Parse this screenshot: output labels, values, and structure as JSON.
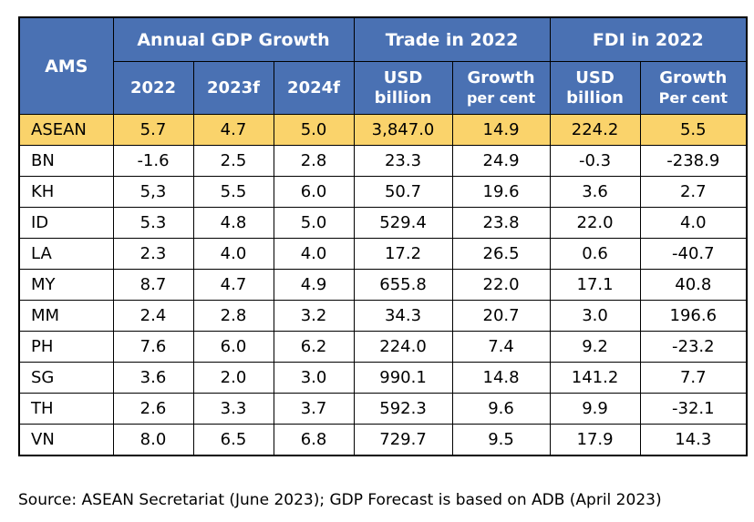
{
  "table": {
    "header": {
      "ams": "AMS",
      "groups": {
        "gdp": "Annual GDP Growth",
        "trade": "Trade in 2022",
        "fdi": "FDI in 2022"
      },
      "subs": {
        "gdp_2022": "2022",
        "gdp_2023f": "2023f",
        "gdp_2024f": "2024f",
        "trade_usd_line1": "USD",
        "trade_usd_line2": "billion",
        "trade_growth_line1": "Growth",
        "trade_growth_line2": "per cent",
        "fdi_usd_line1": "USD",
        "fdi_usd_line2": "billion",
        "fdi_growth_line1": "Growth",
        "fdi_growth_line2": "Per cent"
      }
    },
    "rows": [
      [
        "ASEAN",
        "5.7",
        "4.7",
        "5.0",
        "3,847.0",
        "14.9",
        "224.2",
        "5.5"
      ],
      [
        "BN",
        "-1.6",
        "2.5",
        "2.8",
        "23.3",
        "24.9",
        "-0.3",
        "-238.9"
      ],
      [
        "KH",
        "5,3",
        "5.5",
        "6.0",
        "50.7",
        "19.6",
        "3.6",
        "2.7"
      ],
      [
        "ID",
        "5.3",
        "4.8",
        "5.0",
        "529.4",
        "23.8",
        "22.0",
        "4.0"
      ],
      [
        "LA",
        "2.3",
        "4.0",
        "4.0",
        "17.2",
        "26.5",
        "0.6",
        "-40.7"
      ],
      [
        "MY",
        "8.7",
        "4.7",
        "4.9",
        "655.8",
        "22.0",
        "17.1",
        "40.8"
      ],
      [
        "MM",
        "2.4",
        "2.8",
        "3.2",
        "34.3",
        "20.7",
        "3.0",
        "196.6"
      ],
      [
        "PH",
        "7.6",
        "6.0",
        "6.2",
        "224.0",
        "7.4",
        "9.2",
        "-23.2"
      ],
      [
        "SG",
        "3.6",
        "2.0",
        "3.0",
        "990.1",
        "14.8",
        "141.2",
        "7.7"
      ],
      [
        "TH",
        "2.6",
        "3.3",
        "3.7",
        "592.3",
        "9.6",
        "9.9",
        "-32.1"
      ],
      [
        "VN",
        "8.0",
        "6.5",
        "6.8",
        "729.7",
        "9.5",
        "17.9",
        "14.3"
      ]
    ]
  },
  "source": "Source: ASEAN Secretariat (June 2023); GDP Forecast is based on ADB (April 2023)",
  "colors": {
    "header_bg": "#4a71b3",
    "header_text": "#ffffff",
    "highlight_row_bg": "#fad36b",
    "border": "#000000"
  }
}
